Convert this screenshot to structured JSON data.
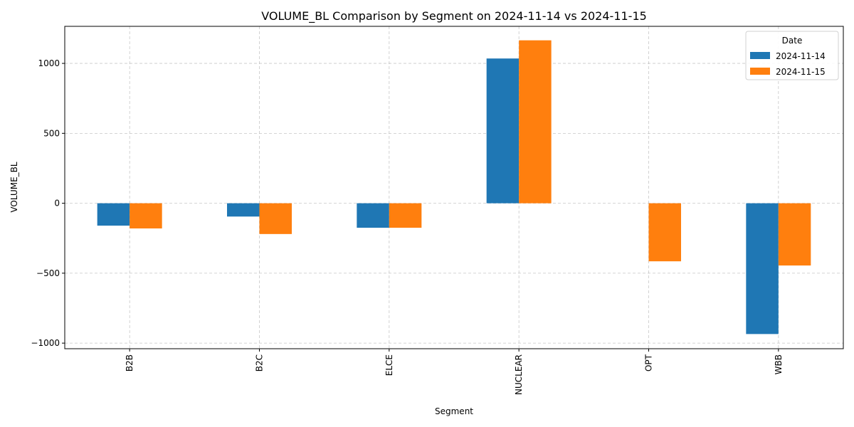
{
  "chart_data": {
    "type": "bar",
    "title": "VOLUME_BL Comparison by Segment on 2024-11-14 vs 2024-11-15",
    "xlabel": "Segment",
    "ylabel": "VOLUME_BL",
    "categories": [
      "B2B",
      "B2C",
      "ELCE",
      "NUCLEAR",
      "OPT",
      "WBB"
    ],
    "series": [
      {
        "name": "2024-11-14",
        "color": "#1f77b4",
        "values": [
          -160,
          -95,
          -175,
          1035,
          0,
          -935
        ]
      },
      {
        "name": "2024-11-15",
        "color": "#ff7f0e",
        "values": [
          -180,
          -220,
          -175,
          1165,
          -415,
          -445
        ]
      }
    ],
    "ylim": [
      -1040,
      1265
    ],
    "yticks": [
      -1000,
      -500,
      0,
      500,
      1000
    ],
    "ytick_labels": [
      "−1000",
      "−500",
      "0",
      "500",
      "1000"
    ],
    "legend": {
      "title": "Date",
      "position": "top-right"
    },
    "grid": true
  }
}
